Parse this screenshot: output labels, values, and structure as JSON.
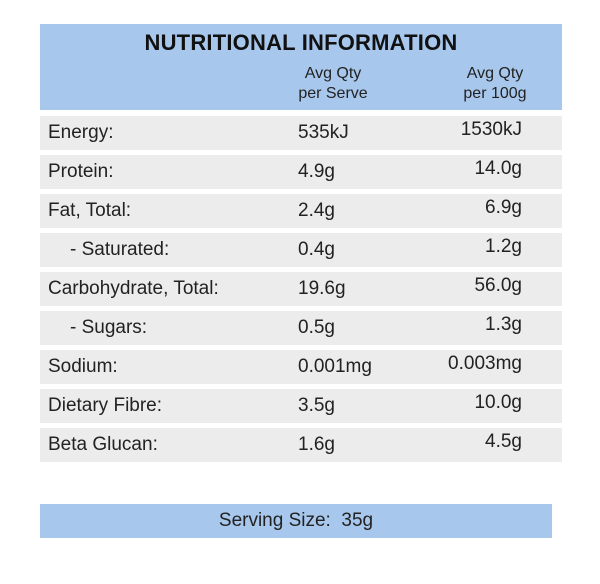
{
  "panel": {
    "title": "NUTRITIONAL INFORMATION",
    "col_serve_line1": "Avg Qty",
    "col_serve_line2": "per Serve",
    "col_100_line1": "Avg Qty",
    "col_100_line2": "per 100g"
  },
  "rows": [
    {
      "label": "Energy:",
      "serve": "535kJ",
      "per100": "1530kJ"
    },
    {
      "label": "Protein:",
      "serve": "4.9g",
      "per100": "14.0g"
    },
    {
      "label": "Fat, Total:",
      "serve": "2.4g",
      "per100": "6.9g"
    },
    {
      "label": "- Saturated:",
      "serve": "0.4g",
      "per100": "1.2g"
    },
    {
      "label": "Carbohydrate, Total:",
      "serve": "19.6g",
      "per100": "56.0g"
    },
    {
      "label": "- Sugars:",
      "serve": "0.5g",
      "per100": "1.3g"
    },
    {
      "label": "Sodium:",
      "serve": "0.001mg",
      "per100": "0.003mg"
    },
    {
      "label": "Dietary Fibre:",
      "serve": "3.5g",
      "per100": "10.0g"
    },
    {
      "label": "Beta Glucan:",
      "serve": "1.6g",
      "per100": "4.5g"
    }
  ],
  "serving": {
    "text": "Serving Size:  35g"
  },
  "colors": {
    "header_bg": "#a7c7ec",
    "row_bg": "#ececec"
  }
}
